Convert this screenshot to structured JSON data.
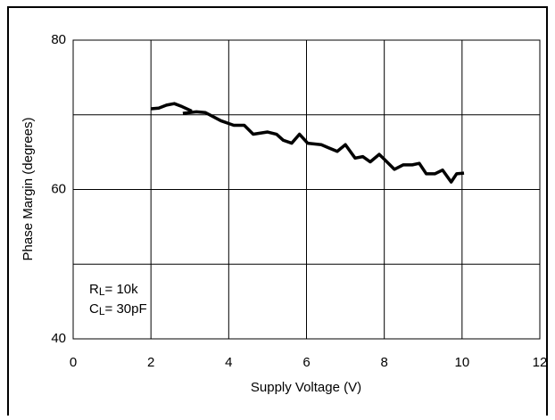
{
  "chart_data": {
    "type": "line",
    "x_label": "Supply Voltage (V)",
    "y_label": "Phase Margin (degrees)",
    "xlim": [
      0,
      12
    ],
    "ylim": [
      40,
      80
    ],
    "xticks": [
      0,
      2,
      4,
      6,
      8,
      10,
      12
    ],
    "yticks": [
      40,
      60,
      80
    ],
    "y_minor_ticks": [
      50,
      70
    ],
    "grid": true,
    "series": [
      {
        "color": "#000000",
        "x": [
          2.0,
          2.2,
          2.4,
          2.6,
          2.8,
          3.05
        ],
        "values": [
          70.8,
          70.9,
          71.3,
          71.5,
          71.1,
          70.5
        ]
      },
      {
        "color": "#000000",
        "x": [
          2.82,
          3.17,
          3.4,
          3.8,
          4.13,
          4.4,
          4.63,
          5.0,
          5.23,
          5.4,
          5.62,
          5.82,
          6.03,
          6.38,
          6.56,
          6.79,
          7.0,
          7.25,
          7.45,
          7.64,
          7.87,
          8.03,
          8.26,
          8.49,
          8.72,
          8.9,
          9.08,
          9.3,
          9.5,
          9.72,
          9.86,
          10.05
        ],
        "values": [
          70.2,
          70.4,
          70.3,
          69.2,
          68.6,
          68.6,
          67.4,
          67.7,
          67.4,
          66.6,
          66.2,
          67.4,
          66.2,
          66.0,
          65.6,
          65.1,
          66.0,
          64.2,
          64.4,
          63.7,
          64.7,
          63.9,
          62.7,
          63.3,
          63.3,
          63.5,
          62.1,
          62.1,
          62.6,
          61.0,
          62.1,
          62.2
        ]
      }
    ],
    "annotations": [
      {
        "main": "R",
        "sub": "L",
        "rest": "= 10k"
      },
      {
        "main": "C",
        "sub": "L",
        "rest": "= 30pF"
      }
    ]
  }
}
